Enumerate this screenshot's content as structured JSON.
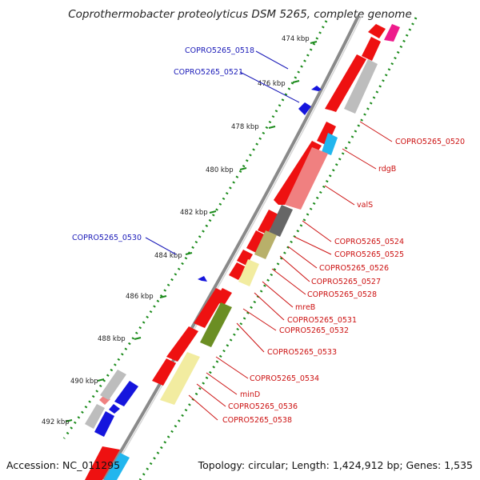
{
  "title": "Coprothermobacter proteolyticus DSM 5265, complete genome",
  "footer": {
    "accession": "Accession: NC_011295",
    "summary": "Topology: circular; Length: 1,424,912 bp; Genes: 1,535"
  },
  "colors": {
    "forward_label": "#1a1ab8",
    "reverse_label": "#cc1111",
    "gene_red": "#ee1111",
    "gene_blue": "#1515dd",
    "gene_pink": "#f08080",
    "gene_gray": "#bdbdbd",
    "gene_darkgray": "#666666",
    "gene_khaki": "#b8b06a",
    "gene_paleyellow": "#f2eca0",
    "gene_olive": "#6b8e23",
    "gene_cyan": "#22b6ee",
    "gene_magenta": "#ee1c8c",
    "backbone": "#8a8a8a",
    "tick_green": "#1a8a1a"
  },
  "kbp_labels": [
    "474 kbp",
    "476 kbp",
    "478 kbp",
    "480 kbp",
    "482 kbp",
    "484 kbp",
    "486 kbp",
    "488 kbp",
    "490 kbp",
    "492 kbp"
  ],
  "forward_labels": [
    "COPRO5265_0518",
    "COPRO5265_0521",
    "COPRO5265_0530"
  ],
  "reverse_labels": [
    "COPRO5265_0520",
    "rdgB",
    "valS",
    "COPRO5265_0524",
    "COPRO5265_0525",
    "COPRO5265_0526",
    "COPRO5265_0527",
    "COPRO5265_0528",
    "mreB",
    "COPRO5265_0531",
    "COPRO5265_0532",
    "COPRO5265_0533",
    "COPRO5265_0534",
    "minD",
    "COPRO5265_0536",
    "COPRO5265_0538"
  ]
}
